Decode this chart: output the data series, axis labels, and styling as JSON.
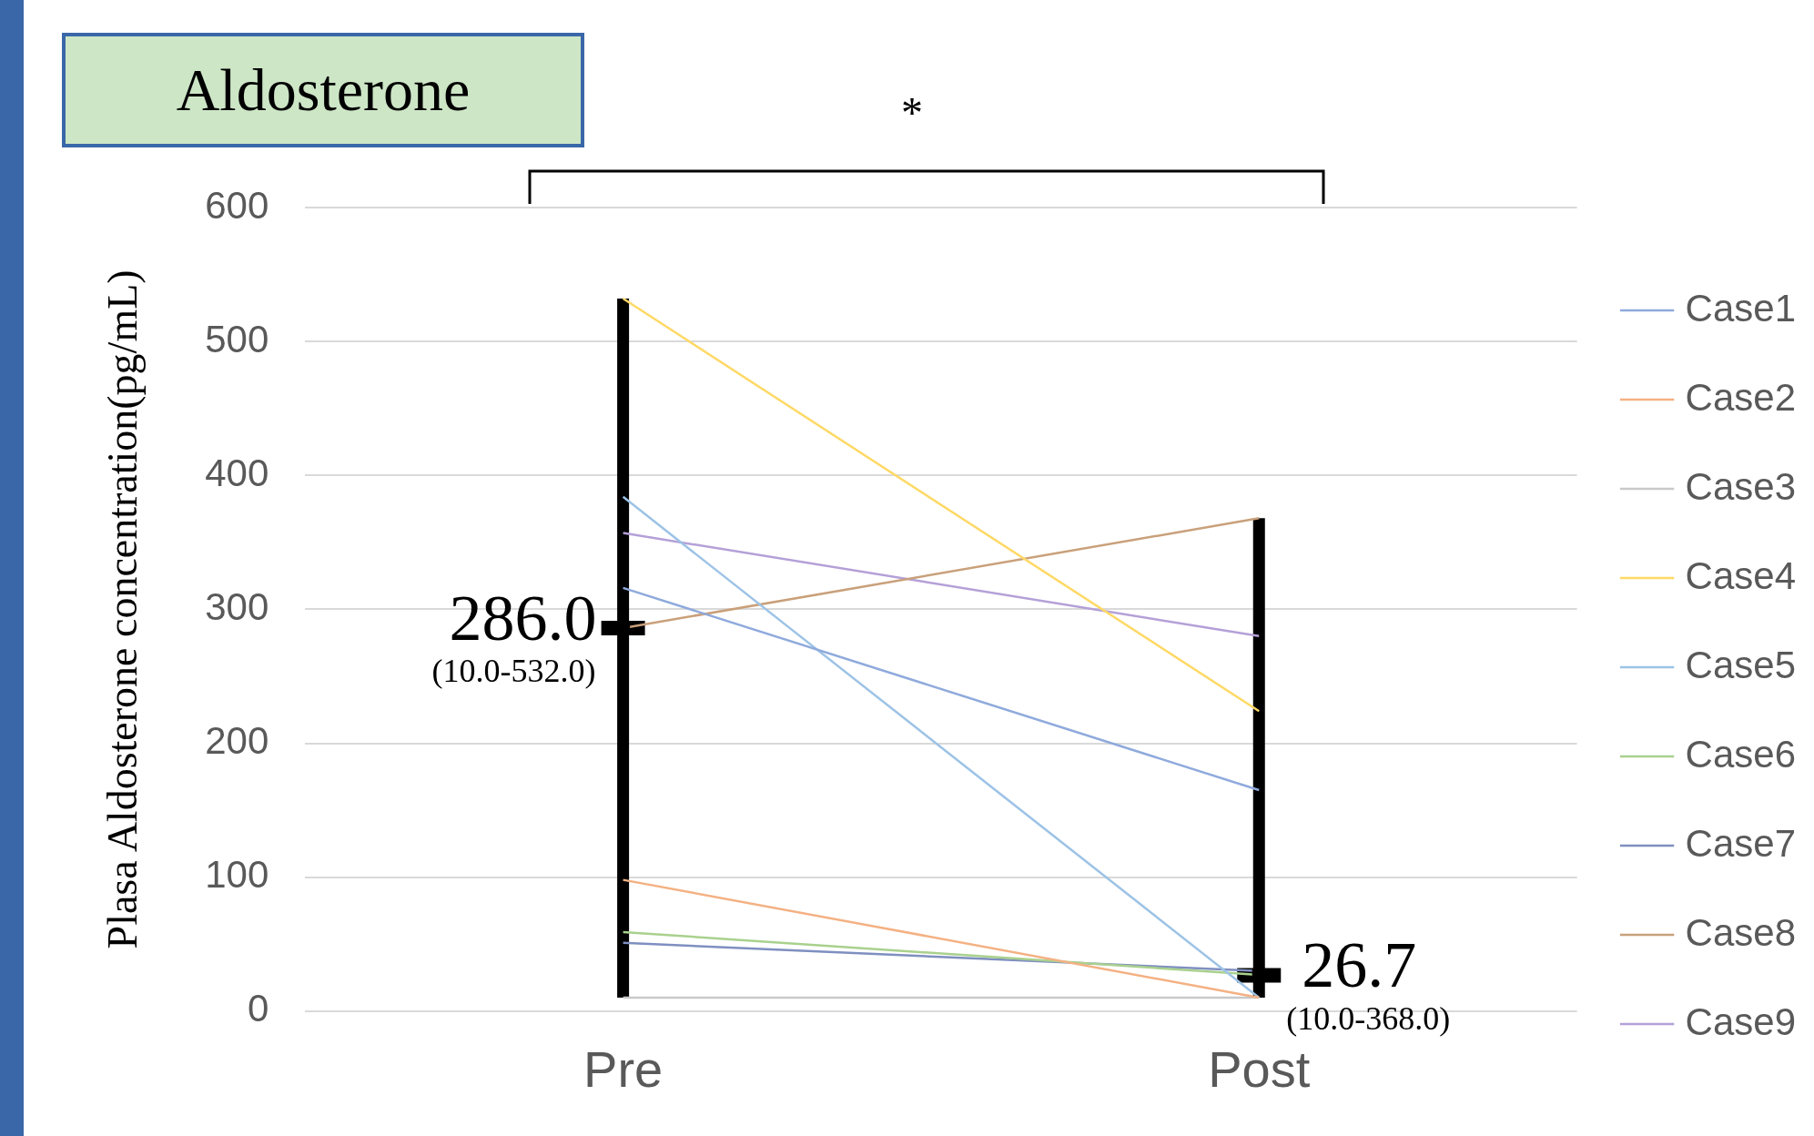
{
  "chart_data": {
    "type": "line",
    "title": "Aldosterone",
    "ylabel": "Plasa Aldosterone concentration(pg/mL)",
    "categories": [
      "Pre",
      "Post"
    ],
    "series": [
      {
        "name": "Case1",
        "color": "#8faadc",
        "values": [
          316,
          165
        ]
      },
      {
        "name": "Case2",
        "color": "#f4b183",
        "values": [
          98,
          10
        ]
      },
      {
        "name": "Case3",
        "color": "#c9c9c9",
        "values": [
          10,
          10
        ]
      },
      {
        "name": "Case4",
        "color": "#ffd966",
        "values": [
          532,
          224
        ]
      },
      {
        "name": "Case5",
        "color": "#9dc3e6",
        "values": [
          384,
          10
        ]
      },
      {
        "name": "Case6",
        "color": "#a9d18e",
        "values": [
          59,
          27
        ]
      },
      {
        "name": "Case7",
        "color": "#7f8fc0",
        "values": [
          51,
          30
        ]
      },
      {
        "name": "Case8",
        "color": "#c9a07a",
        "values": [
          286,
          368
        ]
      },
      {
        "name": "Case9",
        "color": "#b4a0d8",
        "values": [
          357,
          280
        ]
      },
      {
        "type": "scatter",
        "marker": "square",
        "color": "#000000",
        "values": [
          286.0,
          26.7
        ],
        "errors": [
          [
            10,
            532
          ],
          [
            10,
            368
          ]
        ],
        "value_labels": [
          "286.0",
          "26.7"
        ]
      }
    ],
    "annotations": [
      "*",
      {
        "text": "(10.0-532.0)",
        "x": "Pre",
        "y": 286.0
      },
      {
        "text": "(10.0-368.0)",
        "x": "Post",
        "y": 26.7
      }
    ],
    "ylim": [
      0,
      600
    ],
    "yticks": [
      0,
      100,
      200,
      300,
      400,
      500,
      600
    ],
    "grid": "y",
    "legend": "right",
    "marker": "none",
    "line_style": "solid"
  }
}
